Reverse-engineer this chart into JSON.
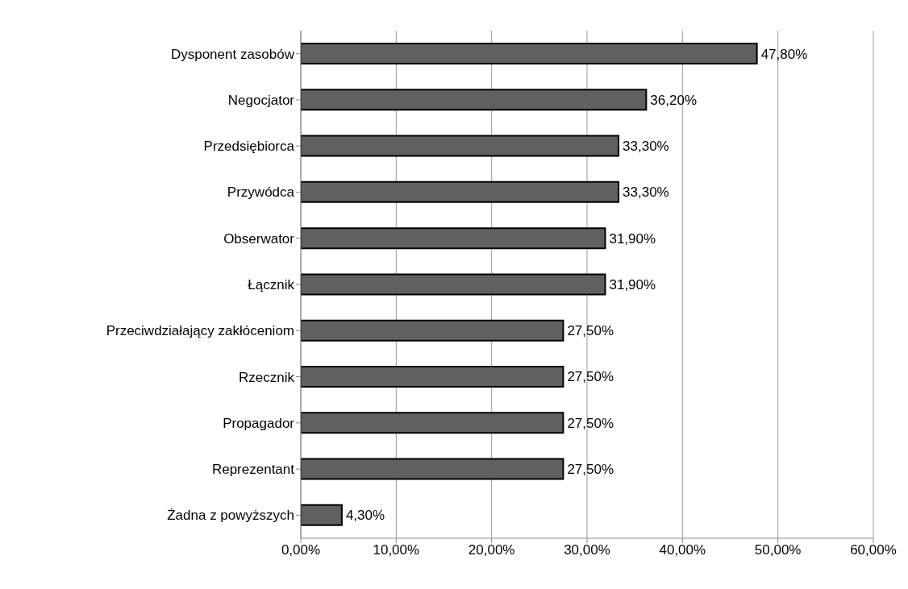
{
  "chart_data": {
    "type": "bar",
    "orientation": "horizontal",
    "categories": [
      "Dysponent zasobów",
      "Negocjator",
      "Przedsiębiorca",
      "Przywódca",
      "Obserwator",
      "Łącznik",
      "Przeciwdziałający zakłóceniom",
      "Rzecznik",
      "Propagador",
      "Reprezentant",
      "Żadna z powyższych"
    ],
    "values": [
      47.8,
      36.2,
      33.3,
      33.3,
      31.9,
      31.9,
      27.5,
      27.5,
      27.5,
      27.5,
      4.3
    ],
    "value_labels": [
      "47,80%",
      "36,20%",
      "33,30%",
      "33,30%",
      "31,90%",
      "31,90%",
      "27,50%",
      "27,50%",
      "27,50%",
      "27,50%",
      "4,30%"
    ],
    "color": "#606060",
    "xlim": [
      0,
      60
    ],
    "xticks": [
      {
        "value": 0,
        "label": "0,00%"
      },
      {
        "value": 10,
        "label": "10,00%"
      },
      {
        "value": 20,
        "label": "20,00%"
      },
      {
        "value": 30,
        "label": "30,00%"
      },
      {
        "value": 40,
        "label": "40,00%"
      },
      {
        "value": 50,
        "label": "50,00%"
      },
      {
        "value": 60,
        "label": "60,00%"
      }
    ],
    "grid": "x"
  }
}
